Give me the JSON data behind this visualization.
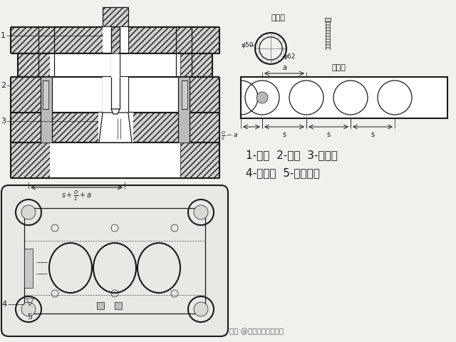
{
  "bg_color": "#f0f0ec",
  "line_color": "#1a1a1a",
  "text_color": "#1a1a1a",
  "label_line1": "1-凸模  2-凹模  3-挡料杆",
  "label_line2": "4-侧压板  5-侧压簧片",
  "watermark": "头条 @金属板材成形之家",
  "workpiece_label": "工件图",
  "layout_label": "排样图",
  "phi50": "φ50",
  "phi62": "φ62",
  "label1": "1",
  "label2": "2",
  "label3": "3",
  "label4": "4",
  "label5": "5",
  "fig_width": 6.4,
  "fig_height": 4.8,
  "dpi": 100
}
